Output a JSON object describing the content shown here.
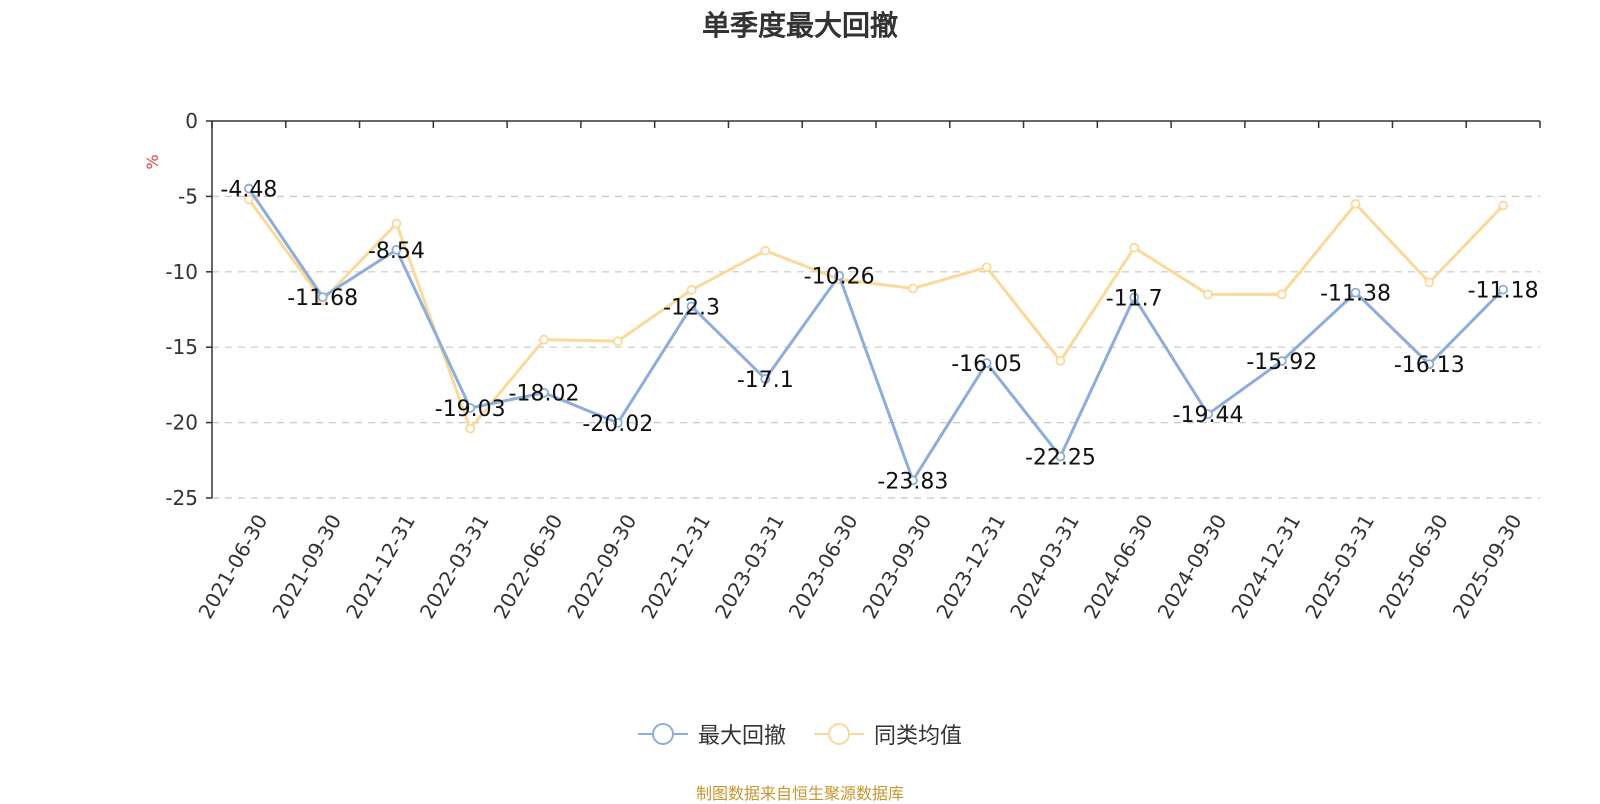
{
  "footer": "制图数据来自恒生聚源数据库",
  "colors": {
    "series1": "#8eaddb",
    "series2": "#fad99a",
    "unit": "#e63b3b",
    "axis": "#333333",
    "grid": "#c8c8c8"
  },
  "chart_data": {
    "type": "line",
    "title": "单季度最大回撤",
    "ylabel": "%",
    "ylim": [
      -25,
      0
    ],
    "yticks": [
      0,
      -5,
      -10,
      -15,
      -20,
      -25
    ],
    "grid": "dashed horizontal",
    "legend_position": "bottom-center",
    "categories": [
      "2021-06-30",
      "2021-09-30",
      "2021-12-31",
      "2022-03-31",
      "2022-06-30",
      "2022-09-30",
      "2022-12-31",
      "2023-03-31",
      "2023-06-30",
      "2023-09-30",
      "2023-12-31",
      "2024-03-31",
      "2024-06-30",
      "2024-09-30",
      "2024-12-31",
      "2025-03-31",
      "2025-06-30",
      "2025-09-30"
    ],
    "series": [
      {
        "name": "最大回撤",
        "color": "#8eaddb",
        "show_labels": true,
        "values": [
          -4.48,
          -11.68,
          -8.54,
          -19.03,
          -18.02,
          -20.02,
          -12.3,
          -17.1,
          -10.26,
          -23.83,
          -16.05,
          -22.25,
          -11.7,
          -19.44,
          -15.92,
          -11.38,
          -16.13,
          -11.18
        ]
      },
      {
        "name": "同类均值",
        "color": "#fad99a",
        "show_labels": false,
        "values": [
          -5.2,
          -11.9,
          -6.8,
          -20.4,
          -14.5,
          -14.6,
          -11.2,
          -8.6,
          -10.5,
          -11.1,
          -9.7,
          -15.9,
          -8.4,
          -11.5,
          -11.5,
          -5.5,
          -10.7,
          -5.6
        ]
      }
    ]
  }
}
